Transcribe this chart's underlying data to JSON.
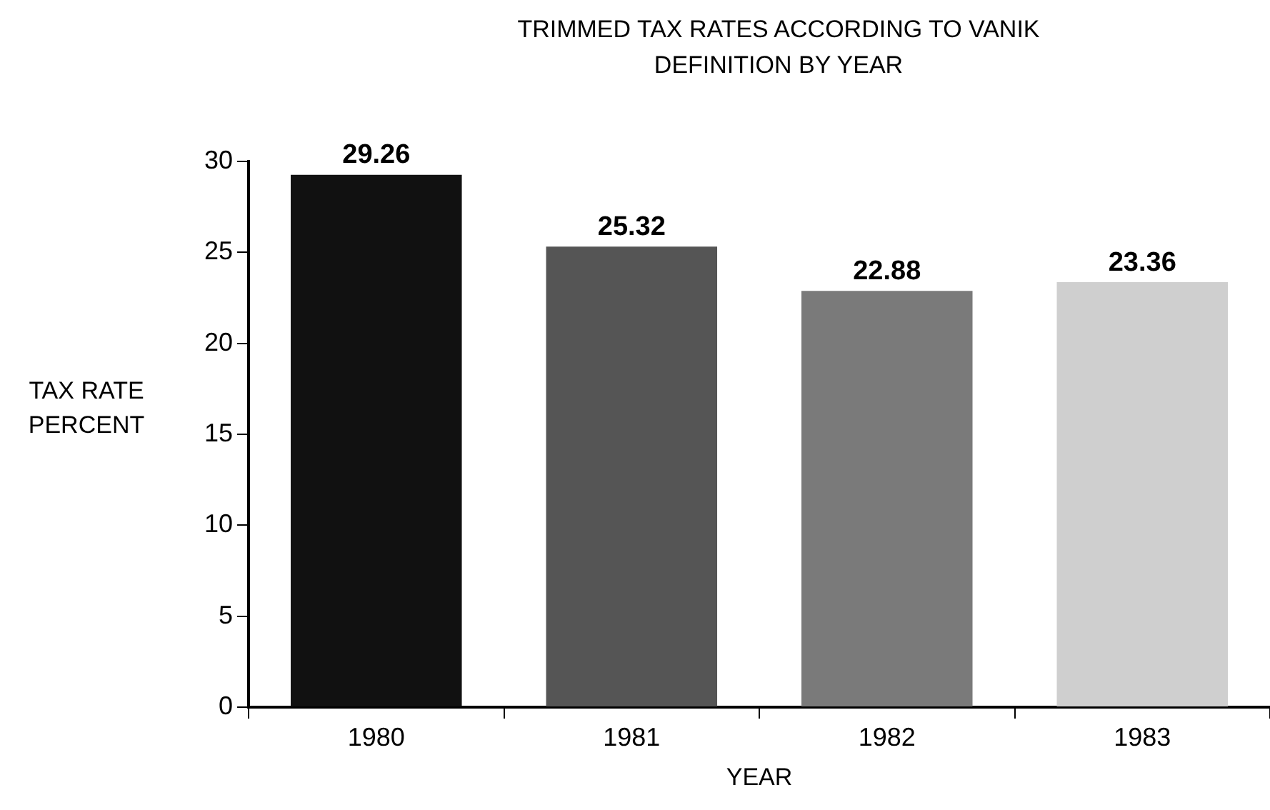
{
  "chart_data": {
    "type": "bar",
    "title": "TRIMMED TAX RATES ACCORDING TO VANIK DEFINITION BY YEAR",
    "xlabel": "YEAR",
    "ylabel": "TAX RATE PERCENT",
    "categories": [
      "1980",
      "1981",
      "1982",
      "1983"
    ],
    "values": [
      29.26,
      25.32,
      22.88,
      23.36
    ],
    "colors": [
      "#111111",
      "#555555",
      "#7a7a7a",
      "#cfcfcf"
    ],
    "ylim": [
      0,
      30
    ],
    "yticks": [
      0,
      5,
      10,
      15,
      20,
      25,
      30
    ],
    "grid": false,
    "legend": false,
    "data_labels": true
  }
}
